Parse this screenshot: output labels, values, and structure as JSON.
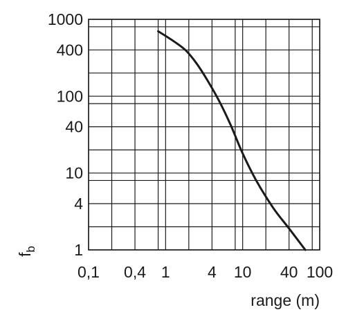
{
  "chart_data": {
    "type": "line",
    "title": "",
    "xlabel": "range (m)",
    "ylabel": {
      "main": "f",
      "sub": "b"
    },
    "x_scale": "log",
    "y_scale": "log",
    "xlim": [
      0.1,
      100
    ],
    "ylim": [
      1,
      1000
    ],
    "grid": true,
    "x_ticks": [
      {
        "value": 0.1,
        "label": "0,1"
      },
      {
        "value": 0.4,
        "label": "0,4"
      },
      {
        "value": 1,
        "label": "1"
      },
      {
        "value": 4,
        "label": "4"
      },
      {
        "value": 10,
        "label": "10"
      },
      {
        "value": 40,
        "label": "40"
      },
      {
        "value": 100,
        "label": "100"
      }
    ],
    "y_ticks": [
      {
        "value": 1,
        "label": "1"
      },
      {
        "value": 4,
        "label": "4"
      },
      {
        "value": 10,
        "label": "10"
      },
      {
        "value": 40,
        "label": "40"
      },
      {
        "value": 100,
        "label": "100"
      },
      {
        "value": 400,
        "label": "400"
      },
      {
        "value": 1000,
        "label": "1000"
      }
    ],
    "x_gridlines": [
      0.1,
      0.2,
      0.4,
      0.8,
      1,
      2,
      4,
      8,
      10,
      20,
      40,
      80,
      100
    ],
    "y_gridlines": [
      1,
      2,
      4,
      8,
      10,
      20,
      40,
      80,
      100,
      200,
      400,
      800,
      1000
    ],
    "series": [
      {
        "x": [
          0.8,
          1.2,
          1.8,
          2.5,
          3.5,
          5,
          7,
          10,
          15,
          25,
          40,
          65
        ],
        "y": [
          700,
          540,
          400,
          270,
          160,
          85,
          42,
          18,
          8,
          3.5,
          1.9,
          1.0
        ]
      }
    ],
    "colors": {
      "line": "#1a1a1a",
      "grid": "#1a1a1a",
      "background": "#ffffff"
    }
  }
}
